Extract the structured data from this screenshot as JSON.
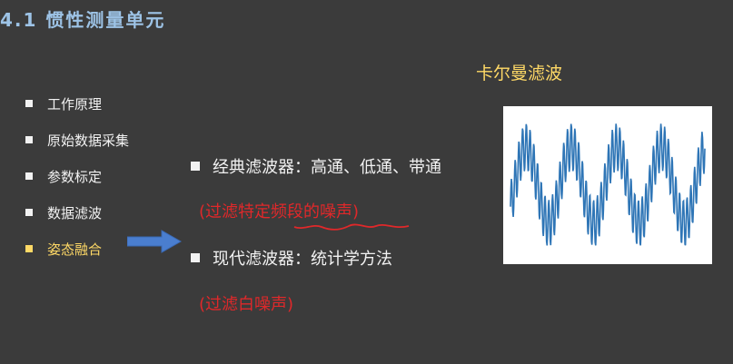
{
  "slide": {
    "title": "4.1 惯性测量单元"
  },
  "sidebar": {
    "items": [
      {
        "label": "工作原理"
      },
      {
        "label": "原始数据采集"
      },
      {
        "label": "参数标定"
      },
      {
        "label": "数据滤波"
      },
      {
        "label": "姿态融合"
      }
    ],
    "active_index": 4
  },
  "content": {
    "classic_filter": "经典滤波器：高通、低通、带通",
    "classic_note": "(过滤特定频段的噪声)",
    "modern_filter": "现代滤波器：统计学方法",
    "modern_note": "(过滤白噪声)"
  },
  "kalman": {
    "title": "卡尔曼滤波"
  },
  "colors": {
    "background": "#3b3b3b",
    "title": "#9dc3e6",
    "highlight": "#ffd966",
    "note_red": "#e0282a",
    "arrow_blue": "#4a7ecf",
    "signal_line": "#2e75b6"
  }
}
